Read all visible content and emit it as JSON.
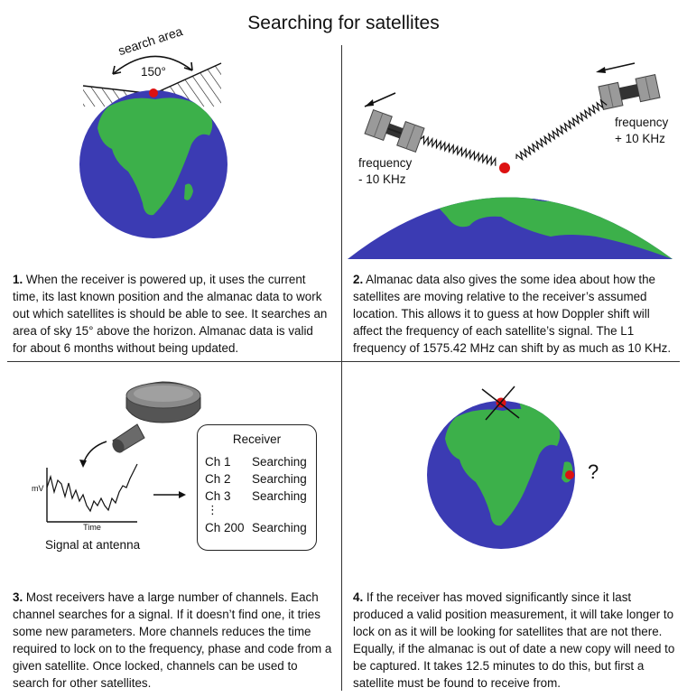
{
  "title": "Searching for satellites",
  "panel1": {
    "search_area_label": "search area",
    "angle_label": "150°",
    "caption_number": "1.",
    "caption_text": " When the receiver is powered up, it uses the current time, its last known position and the almanac data to work out which satellites is should be able to see. It searches an area of sky 15° above the horizon.  Almanac data is valid for about 6 months without being updated."
  },
  "panel2": {
    "freq_left_line1": "frequency",
    "freq_left_line2": "- 10 KHz",
    "freq_right_line1": "frequency",
    "freq_right_line2": "+ 10 KHz",
    "caption_number": "2.",
    "caption_text": " Almanac data also gives the some idea about how the satellites are moving relative to the receiver’s assumed location. This allows it to guess at how Doppler shift will affect the frequency of each satellite’s signal. The L1 frequency of 1575.42 MHz can shift by as much as 10 KHz."
  },
  "panel3": {
    "y_axis_label": "mV",
    "x_axis_label": "Time",
    "signal_label": "Signal at antenna",
    "receiver_title": "Receiver",
    "channels": [
      {
        "name": "Ch 1",
        "status": "Searching"
      },
      {
        "name": "Ch 2",
        "status": "Searching"
      },
      {
        "name": "Ch 3",
        "status": "Searching"
      }
    ],
    "ellipsis": "⋮",
    "last_channel": {
      "name": "Ch 200",
      "status": "Searching"
    },
    "caption_number": "3.",
    "caption_text": " Most receivers have a large number of channels. Each channel searches for a signal. If it doesn’t find one, it tries some new parameters. More channels reduces the time required to lock on to the frequency, phase and code from a given satellite. Once locked, channels can be used to search for other satellites."
  },
  "panel4": {
    "question_mark": "?",
    "caption_number": "4.",
    "caption_text": " If the receiver has moved significantly since it last produced a valid position measurement, it will take longer to lock on as it will be looking for satellites that are not there. Equally, if the almanac is out of date a new copy will need to be captured. It takes 12.5 minutes to do this, but first a satellite must be found to receive from."
  },
  "colors": {
    "ocean": "#3b3bb3",
    "land": "#3cb04a",
    "marker": "#dd1111"
  }
}
